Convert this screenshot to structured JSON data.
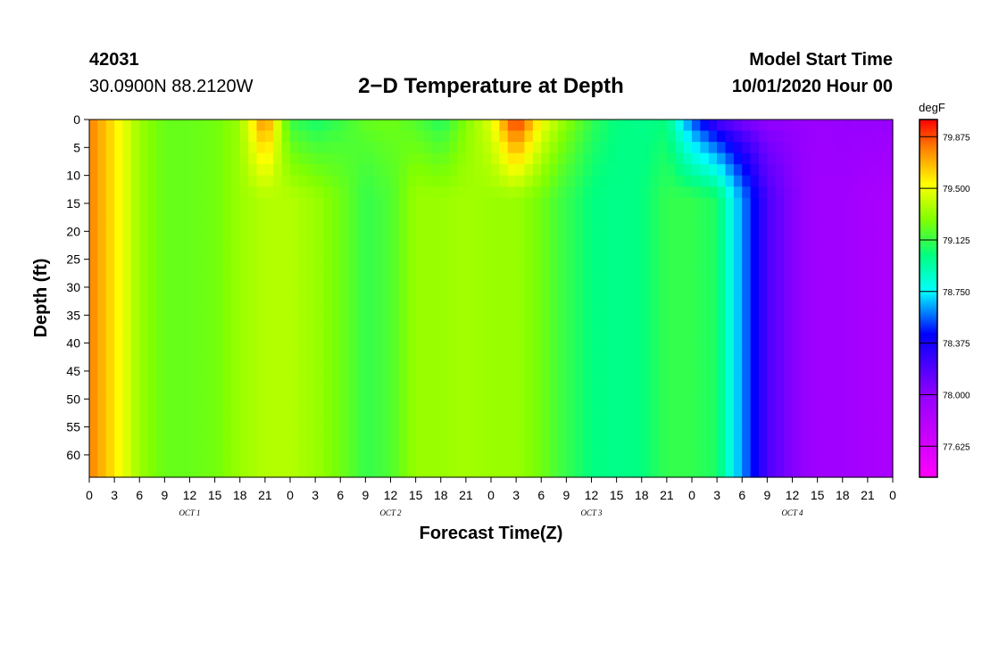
{
  "header": {
    "station_id": "42031",
    "coordinates": "30.0900N 88.2120W",
    "title": "2−D Temperature at Depth",
    "model_start_label": "Model Start Time",
    "model_start_value": "10/01/2020 Hour 00"
  },
  "chart_data": {
    "type": "heatmap",
    "title": "2−D Temperature at Depth",
    "xlabel": "Forecast Time(Z)",
    "ylabel": "Depth (ft)",
    "x_range_hours": [
      0,
      96
    ],
    "x_tick_labels": [
      "0",
      "3",
      "6",
      "9",
      "12",
      "15",
      "18",
      "21",
      "0",
      "3",
      "6",
      "9",
      "12",
      "15",
      "18",
      "21",
      "0",
      "3",
      "6",
      "9",
      "12",
      "15",
      "18",
      "21",
      "0",
      "3",
      "6",
      "9",
      "12",
      "15",
      "18",
      "21",
      "0"
    ],
    "day_labels": [
      "OCT 1",
      "OCT 2",
      "OCT 3",
      "OCT 4"
    ],
    "y_range_ft": [
      0,
      64
    ],
    "y_reversed": true,
    "y_ticks": [
      0,
      5,
      10,
      15,
      20,
      25,
      30,
      35,
      40,
      45,
      50,
      55,
      60
    ],
    "colorbar": {
      "units": "degF",
      "tick_values": [
        "79.875",
        "79.500",
        "79.125",
        "78.750",
        "78.375",
        "78.000",
        "77.625"
      ],
      "min": 77.4,
      "max": 80.0
    },
    "profile_hours": [
      0,
      3,
      6,
      9,
      12,
      15,
      18,
      21,
      24,
      27,
      30,
      33,
      36,
      39,
      42,
      45,
      48,
      51,
      54,
      57,
      60,
      63,
      66,
      69,
      72,
      75,
      78,
      81,
      84,
      87,
      90,
      93,
      96
    ],
    "surface_degF": [
      79.75,
      79.55,
      79.3,
      79.2,
      79.2,
      79.22,
      79.3,
      79.78,
      79.1,
      79.02,
      79.1,
      79.2,
      79.22,
      79.15,
      79.05,
      79.25,
      79.45,
      79.95,
      79.5,
      79.28,
      79.1,
      79.0,
      78.98,
      79.0,
      78.5,
      78.15,
      78.05,
      78.0,
      78.0,
      77.98,
      78.0,
      78.0,
      78.0
    ],
    "bottom_degF": [
      79.75,
      79.55,
      79.3,
      79.2,
      79.2,
      79.22,
      79.3,
      79.35,
      79.35,
      79.3,
      79.22,
      79.1,
      79.15,
      79.3,
      79.3,
      79.32,
      79.3,
      79.3,
      79.22,
      79.1,
      79.0,
      78.98,
      79.0,
      79.1,
      79.1,
      79.05,
      78.6,
      78.2,
      78.05,
      77.95,
      77.95,
      77.92,
      77.9
    ]
  }
}
